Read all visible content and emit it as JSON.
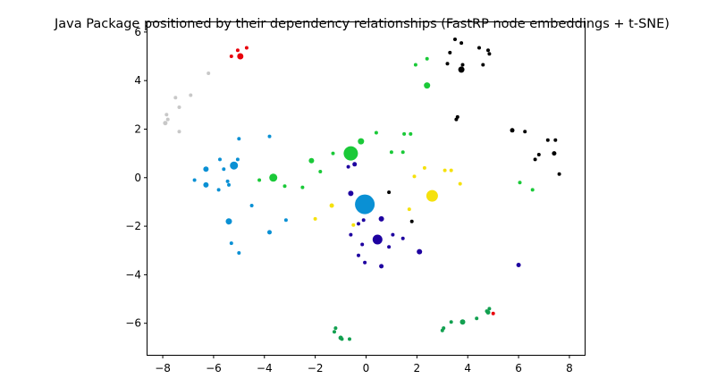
{
  "chart_data": {
    "type": "scatter",
    "title": "Java Package positioned by their dependency relationships (FastRP node embeddings + t-SNE)",
    "xlabel": "",
    "ylabel": "",
    "xlim": [
      -8.6,
      8.6
    ],
    "ylim": [
      -7.3,
      6.4
    ],
    "xticks": [
      -8,
      -6,
      -4,
      -2,
      0,
      2,
      4,
      6,
      8
    ],
    "yticks": [
      -6,
      -4,
      -2,
      0,
      2,
      4,
      6
    ],
    "grid": false,
    "legend": "none",
    "points": [
      {
        "x": -5.3,
        "y": 5.0,
        "size": 2,
        "color": "#e8000b"
      },
      {
        "x": -5.05,
        "y": 5.25,
        "size": 2,
        "color": "#e8000b"
      },
      {
        "x": -4.95,
        "y": 5.0,
        "size": 3.5,
        "color": "#e8000b"
      },
      {
        "x": -4.7,
        "y": 5.35,
        "size": 2,
        "color": "#e8000b"
      },
      {
        "x": 5.0,
        "y": -5.6,
        "size": 2,
        "color": "#e8000b"
      },
      {
        "x": -6.2,
        "y": 4.3,
        "size": 2,
        "color": "#c8c8c8"
      },
      {
        "x": -6.9,
        "y": 3.4,
        "size": 2,
        "color": "#c8c8c8"
      },
      {
        "x": -7.5,
        "y": 3.3,
        "size": 2,
        "color": "#c8c8c8"
      },
      {
        "x": -7.35,
        "y": 2.9,
        "size": 2,
        "color": "#c8c8c8"
      },
      {
        "x": -7.85,
        "y": 2.6,
        "size": 2,
        "color": "#c8c8c8"
      },
      {
        "x": -7.8,
        "y": 2.4,
        "size": 2,
        "color": "#c8c8c8"
      },
      {
        "x": -7.9,
        "y": 2.25,
        "size": 2.5,
        "color": "#c8c8c8"
      },
      {
        "x": -7.35,
        "y": 1.9,
        "size": 2,
        "color": "#c8c8c8"
      },
      {
        "x": 3.5,
        "y": 5.7,
        "size": 2,
        "color": "#000000"
      },
      {
        "x": 3.75,
        "y": 5.55,
        "size": 2,
        "color": "#000000"
      },
      {
        "x": 3.3,
        "y": 5.15,
        "size": 2,
        "color": "#000000"
      },
      {
        "x": 4.45,
        "y": 5.35,
        "size": 2,
        "color": "#000000"
      },
      {
        "x": 4.8,
        "y": 5.25,
        "size": 2,
        "color": "#000000"
      },
      {
        "x": 4.85,
        "y": 5.1,
        "size": 2,
        "color": "#000000"
      },
      {
        "x": 3.2,
        "y": 4.7,
        "size": 2,
        "color": "#000000"
      },
      {
        "x": 3.8,
        "y": 4.65,
        "size": 2,
        "color": "#000000"
      },
      {
        "x": 4.6,
        "y": 4.65,
        "size": 2,
        "color": "#000000"
      },
      {
        "x": 3.75,
        "y": 4.45,
        "size": 3.5,
        "color": "#000000"
      },
      {
        "x": 3.6,
        "y": 2.5,
        "size": 2,
        "color": "#000000"
      },
      {
        "x": 3.55,
        "y": 2.4,
        "size": 2,
        "color": "#000000"
      },
      {
        "x": 5.75,
        "y": 1.95,
        "size": 2.5,
        "color": "#000000"
      },
      {
        "x": 6.25,
        "y": 1.9,
        "size": 2,
        "color": "#000000"
      },
      {
        "x": 7.15,
        "y": 1.55,
        "size": 2,
        "color": "#000000"
      },
      {
        "x": 7.45,
        "y": 1.55,
        "size": 2,
        "color": "#000000"
      },
      {
        "x": 6.8,
        "y": 0.95,
        "size": 2,
        "color": "#000000"
      },
      {
        "x": 7.4,
        "y": 1.0,
        "size": 2.5,
        "color": "#000000"
      },
      {
        "x": 6.65,
        "y": 0.75,
        "size": 2,
        "color": "#000000"
      },
      {
        "x": 7.6,
        "y": 0.15,
        "size": 2,
        "color": "#000000"
      },
      {
        "x": 0.9,
        "y": -0.6,
        "size": 2,
        "color": "#000000"
      },
      {
        "x": 1.8,
        "y": -1.8,
        "size": 2,
        "color": "#000000"
      },
      {
        "x": 1.95,
        "y": 4.65,
        "size": 2,
        "color": "#1ac938"
      },
      {
        "x": 2.4,
        "y": 4.9,
        "size": 2,
        "color": "#1ac938"
      },
      {
        "x": 2.4,
        "y": 3.8,
        "size": 3.5,
        "color": "#1ac938"
      },
      {
        "x": 0.4,
        "y": 1.85,
        "size": 2,
        "color": "#1ac938"
      },
      {
        "x": 1.5,
        "y": 1.8,
        "size": 2,
        "color": "#1ac938"
      },
      {
        "x": 1.75,
        "y": 1.8,
        "size": 2,
        "color": "#1ac938"
      },
      {
        "x": -0.2,
        "y": 1.5,
        "size": 3.5,
        "color": "#1ac938"
      },
      {
        "x": -0.6,
        "y": 1.0,
        "size": 8,
        "color": "#1ac938"
      },
      {
        "x": 1.0,
        "y": 1.05,
        "size": 2,
        "color": "#1ac938"
      },
      {
        "x": 1.45,
        "y": 1.05,
        "size": 2,
        "color": "#1ac938"
      },
      {
        "x": -1.3,
        "y": 1.0,
        "size": 2,
        "color": "#1ac938"
      },
      {
        "x": -2.15,
        "y": 0.7,
        "size": 3,
        "color": "#1ac938"
      },
      {
        "x": -1.8,
        "y": 0.25,
        "size": 2,
        "color": "#1ac938"
      },
      {
        "x": -3.65,
        "y": 0.0,
        "size": 4.5,
        "color": "#1ac938"
      },
      {
        "x": -4.2,
        "y": -0.1,
        "size": 2,
        "color": "#1ac938"
      },
      {
        "x": -3.2,
        "y": -0.35,
        "size": 2,
        "color": "#1ac938"
      },
      {
        "x": -2.5,
        "y": -0.4,
        "size": 2,
        "color": "#1ac938"
      },
      {
        "x": 6.05,
        "y": -0.2,
        "size": 2,
        "color": "#1ac938"
      },
      {
        "x": 6.55,
        "y": -0.5,
        "size": 2,
        "color": "#1ac938"
      },
      {
        "x": -5.0,
        "y": 1.6,
        "size": 2,
        "color": "#0a90d4"
      },
      {
        "x": -3.8,
        "y": 1.7,
        "size": 2,
        "color": "#0a90d4"
      },
      {
        "x": -5.05,
        "y": 0.75,
        "size": 2,
        "color": "#0a90d4"
      },
      {
        "x": -5.2,
        "y": 0.5,
        "size": 4.5,
        "color": "#0a90d4"
      },
      {
        "x": -5.75,
        "y": 0.75,
        "size": 2,
        "color": "#0a90d4"
      },
      {
        "x": -6.3,
        "y": 0.35,
        "size": 3,
        "color": "#0a90d4"
      },
      {
        "x": -5.6,
        "y": 0.35,
        "size": 2,
        "color": "#0a90d4"
      },
      {
        "x": -6.75,
        "y": -0.1,
        "size": 2,
        "color": "#0a90d4"
      },
      {
        "x": -5.45,
        "y": -0.15,
        "size": 2,
        "color": "#0a90d4"
      },
      {
        "x": -6.3,
        "y": -0.3,
        "size": 3,
        "color": "#0a90d4"
      },
      {
        "x": -5.4,
        "y": -0.3,
        "size": 2,
        "color": "#0a90d4"
      },
      {
        "x": -5.8,
        "y": -0.5,
        "size": 2,
        "color": "#0a90d4"
      },
      {
        "x": -4.5,
        "y": -1.15,
        "size": 2,
        "color": "#0a90d4"
      },
      {
        "x": -3.15,
        "y": -1.75,
        "size": 2,
        "color": "#0a90d4"
      },
      {
        "x": -5.4,
        "y": -1.8,
        "size": 3.5,
        "color": "#0a90d4"
      },
      {
        "x": -3.8,
        "y": -2.25,
        "size": 2.5,
        "color": "#0a90d4"
      },
      {
        "x": -5.3,
        "y": -2.7,
        "size": 2,
        "color": "#0a90d4"
      },
      {
        "x": -5.0,
        "y": -3.1,
        "size": 2,
        "color": "#0a90d4"
      },
      {
        "x": -0.05,
        "y": -1.1,
        "size": 11,
        "color": "#0a90d4"
      },
      {
        "x": 2.3,
        "y": 0.4,
        "size": 2,
        "color": "#f5e10d"
      },
      {
        "x": 3.1,
        "y": 0.3,
        "size": 2,
        "color": "#f5e10d"
      },
      {
        "x": 3.35,
        "y": 0.3,
        "size": 2,
        "color": "#f5e10d"
      },
      {
        "x": 1.9,
        "y": 0.05,
        "size": 2,
        "color": "#f5e10d"
      },
      {
        "x": 3.7,
        "y": -0.25,
        "size": 2,
        "color": "#f5e10d"
      },
      {
        "x": 2.6,
        "y": -0.75,
        "size": 6.5,
        "color": "#f5e10d"
      },
      {
        "x": -1.35,
        "y": -1.15,
        "size": 2.5,
        "color": "#f5e10d"
      },
      {
        "x": -2.0,
        "y": -1.7,
        "size": 2,
        "color": "#f5e10d"
      },
      {
        "x": 1.7,
        "y": -1.3,
        "size": 2,
        "color": "#f5e10d"
      },
      {
        "x": -0.5,
        "y": -1.95,
        "size": 2,
        "color": "#f5e10d"
      },
      {
        "x": -0.45,
        "y": 0.55,
        "size": 2.5,
        "color": "#1e00a0"
      },
      {
        "x": -0.7,
        "y": 0.45,
        "size": 2,
        "color": "#1e00a0"
      },
      {
        "x": -0.6,
        "y": -0.65,
        "size": 3,
        "color": "#1e00a0"
      },
      {
        "x": 0.6,
        "y": -1.7,
        "size": 3,
        "color": "#1e00a0"
      },
      {
        "x": -0.1,
        "y": -1.75,
        "size": 2,
        "color": "#1e00a0"
      },
      {
        "x": -0.3,
        "y": -1.9,
        "size": 2,
        "color": "#1e00a0"
      },
      {
        "x": -0.6,
        "y": -2.35,
        "size": 2,
        "color": "#1e00a0"
      },
      {
        "x": 1.05,
        "y": -2.35,
        "size": 2,
        "color": "#1e00a0"
      },
      {
        "x": 0.45,
        "y": -2.55,
        "size": 5.5,
        "color": "#1e00a0"
      },
      {
        "x": 1.45,
        "y": -2.5,
        "size": 2,
        "color": "#1e00a0"
      },
      {
        "x": -0.15,
        "y": -2.75,
        "size": 2,
        "color": "#1e00a0"
      },
      {
        "x": 0.9,
        "y": -2.85,
        "size": 2,
        "color": "#1e00a0"
      },
      {
        "x": 2.1,
        "y": -3.05,
        "size": 3,
        "color": "#1e00a0"
      },
      {
        "x": -0.3,
        "y": -3.2,
        "size": 2,
        "color": "#1e00a0"
      },
      {
        "x": -0.05,
        "y": -3.5,
        "size": 2,
        "color": "#1e00a0"
      },
      {
        "x": 0.6,
        "y": -3.65,
        "size": 2.5,
        "color": "#1e00a0"
      },
      {
        "x": 6.0,
        "y": -3.6,
        "size": 2.5,
        "color": "#1e00a0"
      },
      {
        "x": 4.85,
        "y": -5.4,
        "size": 2,
        "color": "#12a050"
      },
      {
        "x": 4.75,
        "y": -5.5,
        "size": 2,
        "color": "#12a050"
      },
      {
        "x": 4.8,
        "y": -5.55,
        "size": 2.5,
        "color": "#12a050"
      },
      {
        "x": 4.35,
        "y": -5.8,
        "size": 2,
        "color": "#12a050"
      },
      {
        "x": 3.35,
        "y": -5.95,
        "size": 2,
        "color": "#12a050"
      },
      {
        "x": 3.8,
        "y": -5.95,
        "size": 3,
        "color": "#12a050"
      },
      {
        "x": 3.05,
        "y": -6.2,
        "size": 2,
        "color": "#12a050"
      },
      {
        "x": 3.0,
        "y": -6.3,
        "size": 2,
        "color": "#12a050"
      },
      {
        "x": -1.2,
        "y": -6.2,
        "size": 2,
        "color": "#12a050"
      },
      {
        "x": -1.25,
        "y": -6.35,
        "size": 2,
        "color": "#12a050"
      },
      {
        "x": -1.0,
        "y": -6.6,
        "size": 2.5,
        "color": "#12a050"
      },
      {
        "x": -0.95,
        "y": -6.65,
        "size": 2,
        "color": "#12a050"
      },
      {
        "x": -0.65,
        "y": -6.65,
        "size": 2,
        "color": "#12a050"
      }
    ]
  }
}
